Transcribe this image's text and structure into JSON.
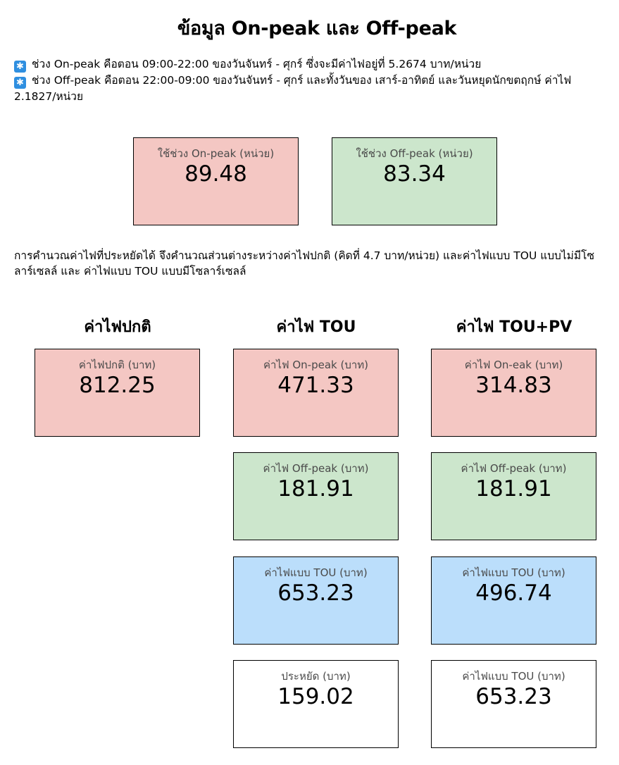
{
  "title": "ข้อมูล On-peak และ Off-peak",
  "notes": [
    {
      "icon": "asterisk-icon",
      "text": "ช่วง On-peak คือตอน 09:00-22:00 ของวันจันทร์ - ศุกร์ ซึ่งจะมีค่าไฟอยู่ที่ 5.2674 บาท/หน่วย"
    },
    {
      "icon": "asterisk-icon",
      "text": "ช่วง Off-peak คือตอน 22:00-09:00 ของวันจันทร์ - ศุกร์ และทั้งวันของ เสาร์-อาทิตย์ และวันหยุดนักขตฤกษ์ ค่าไฟ 2.1827/หน่วย"
    }
  ],
  "usage": {
    "on_peak": {
      "label": "ใช้ช่วง On-peak (หน่วย)",
      "value": "89.48"
    },
    "off_peak": {
      "label": "ใช้ช่วง Off-peak (หน่วย)",
      "value": "83.34"
    }
  },
  "calc_note": "การคำนวณค่าไฟที่ประหยัดได้ จึงคำนวณส่วนต่างระหว่างค่าไฟปกติ (คิดที่ 4.7 บาท/หน่วย) และค่าไฟแบบ TOU แบบไม่มีโซลาร์เซลล์ และ ค่าไฟแบบ TOU แบบมีโซลาร์เซลล์",
  "columns": {
    "normal": {
      "header": "ค่าไฟปกติ",
      "cards": [
        {
          "label": "ค่าไฟปกติ (บาท)",
          "value": "812.25"
        }
      ]
    },
    "tou": {
      "header": "ค่าไฟ TOU",
      "cards": [
        {
          "label": "ค่าไฟ On-peak (บาท)",
          "value": "471.33"
        },
        {
          "label": "ค่าไฟ Off-peak (บาท)",
          "value": "181.91"
        },
        {
          "label": "ค่าไฟแบบ TOU (บาท)",
          "value": "653.23"
        },
        {
          "label": "ประหยัด (บาท)",
          "value": "159.02"
        }
      ]
    },
    "tou_pv": {
      "header": "ค่าไฟ TOU+PV",
      "cards": [
        {
          "label": "ค่าไฟ On-eak (บาท)",
          "value": "314.83"
        },
        {
          "label": "ค่าไฟ Off-peak (บาท)",
          "value": "181.91"
        },
        {
          "label": "ค่าไฟแบบ TOU (บาท)",
          "value": "496.74"
        },
        {
          "label": "ค่าไฟแบบ TOU (บาท)",
          "value": "653.23"
        }
      ]
    }
  },
  "colors": {
    "on_peak_bg": "#f4c7c3",
    "off_peak_bg": "#cce6cc",
    "tou_total_bg": "#bbdefb",
    "plain_bg": "#ffffff",
    "note_icon": "#2f8fe0"
  }
}
